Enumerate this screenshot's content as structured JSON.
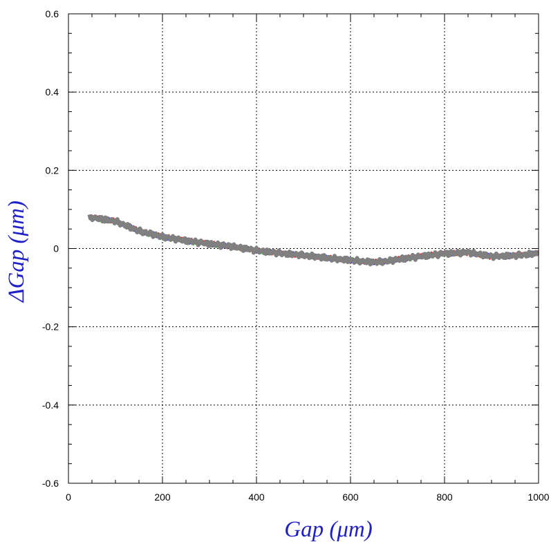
{
  "chart_data": {
    "type": "line",
    "title": "",
    "xlabel": "Gap (μm)",
    "ylabel": "ΔGap (μm)",
    "xlim": [
      0,
      1000
    ],
    "ylim": [
      -0.6,
      0.6
    ],
    "x_ticks": [
      0,
      200,
      400,
      600,
      800,
      1000
    ],
    "x_tick_labels": [
      "0",
      "200",
      "400",
      "600",
      "800",
      "1000"
    ],
    "y_ticks": [
      0.6,
      0.4,
      0.2,
      0,
      -0.2,
      -0.4,
      -0.6
    ],
    "y_tick_labels": [
      "0.6",
      "0.4",
      "0.2",
      "0",
      "-0.2",
      "-0.4",
      "-0.6"
    ],
    "grid": true,
    "legend": "none",
    "label_color": "#2020c8",
    "series": [
      {
        "color": "#0000ff",
        "x": [
          45,
          100,
          150,
          200,
          250,
          300,
          350,
          400,
          450,
          500,
          550,
          600,
          650,
          680,
          700,
          750,
          800,
          850,
          900,
          950,
          1000
        ],
        "y": [
          0.08,
          0.07,
          0.045,
          0.03,
          0.02,
          0.012,
          0.005,
          -0.005,
          -0.012,
          -0.017,
          -0.024,
          -0.03,
          -0.035,
          -0.032,
          -0.028,
          -0.02,
          -0.013,
          -0.01,
          -0.02,
          -0.018,
          -0.012
        ]
      },
      {
        "color": "#ff0000",
        "x": [
          45,
          100,
          150,
          200,
          250,
          300,
          350,
          400,
          450,
          500,
          550,
          600,
          650,
          680,
          700,
          750,
          800,
          850,
          900,
          950,
          1000
        ],
        "y": [
          0.082,
          0.071,
          0.046,
          0.031,
          0.021,
          0.013,
          0.004,
          -0.004,
          -0.011,
          -0.018,
          -0.023,
          -0.031,
          -0.034,
          -0.033,
          -0.027,
          -0.019,
          -0.012,
          -0.011,
          -0.021,
          -0.017,
          -0.011
        ]
      },
      {
        "color": "#00c800",
        "x": [
          45,
          100,
          150,
          200,
          250,
          300,
          350,
          400,
          450,
          500,
          550,
          600,
          650,
          680,
          700,
          750,
          800,
          850,
          900,
          950,
          1000
        ],
        "y": [
          0.078,
          0.069,
          0.044,
          0.029,
          0.019,
          0.011,
          0.006,
          -0.006,
          -0.013,
          -0.016,
          -0.025,
          -0.029,
          -0.036,
          -0.031,
          -0.029,
          -0.021,
          -0.014,
          -0.009,
          -0.019,
          -0.019,
          -0.013
        ]
      },
      {
        "color": "#808080",
        "x": [
          45,
          100,
          150,
          200,
          250,
          300,
          350,
          400,
          450,
          500,
          550,
          600,
          650,
          680,
          700,
          750,
          800,
          850,
          900,
          950,
          1000
        ],
        "y": [
          0.08,
          0.07,
          0.045,
          0.03,
          0.02,
          0.012,
          0.005,
          -0.005,
          -0.012,
          -0.017,
          -0.024,
          -0.03,
          -0.035,
          -0.032,
          -0.028,
          -0.02,
          -0.013,
          -0.01,
          -0.02,
          -0.018,
          -0.012
        ]
      }
    ]
  }
}
